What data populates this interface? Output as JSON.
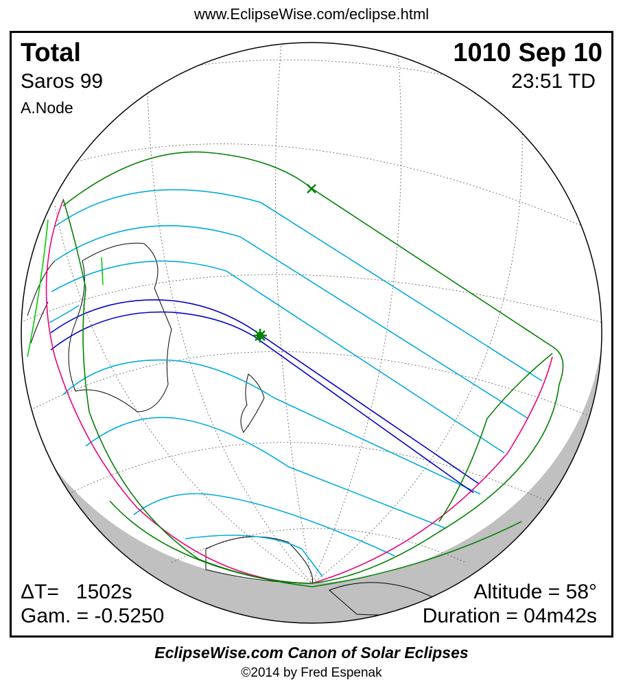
{
  "header": {
    "url": "www.EclipseWise.com/eclipse.html"
  },
  "eclipse": {
    "type": "Total",
    "date": "1010 Sep 10",
    "saros": "Saros  99",
    "time": "23:51 TD",
    "node": "A.Node",
    "delta_t": "ΔT=   1502s",
    "gamma": "Gam. = -0.5250",
    "altitude": "Altitude = 58°",
    "duration": "Duration = 04m42s"
  },
  "footer": {
    "canon": "EclipseWise.com Canon of Solar Eclipses",
    "copyright": "©2014 by Fred Espenak"
  },
  "colors": {
    "central_path": "#0000cc",
    "penumbral_limits": "#008000",
    "magnitude_lines": "#00aadd",
    "rise_set": "#ee0077",
    "night": "#c0c0c0"
  }
}
